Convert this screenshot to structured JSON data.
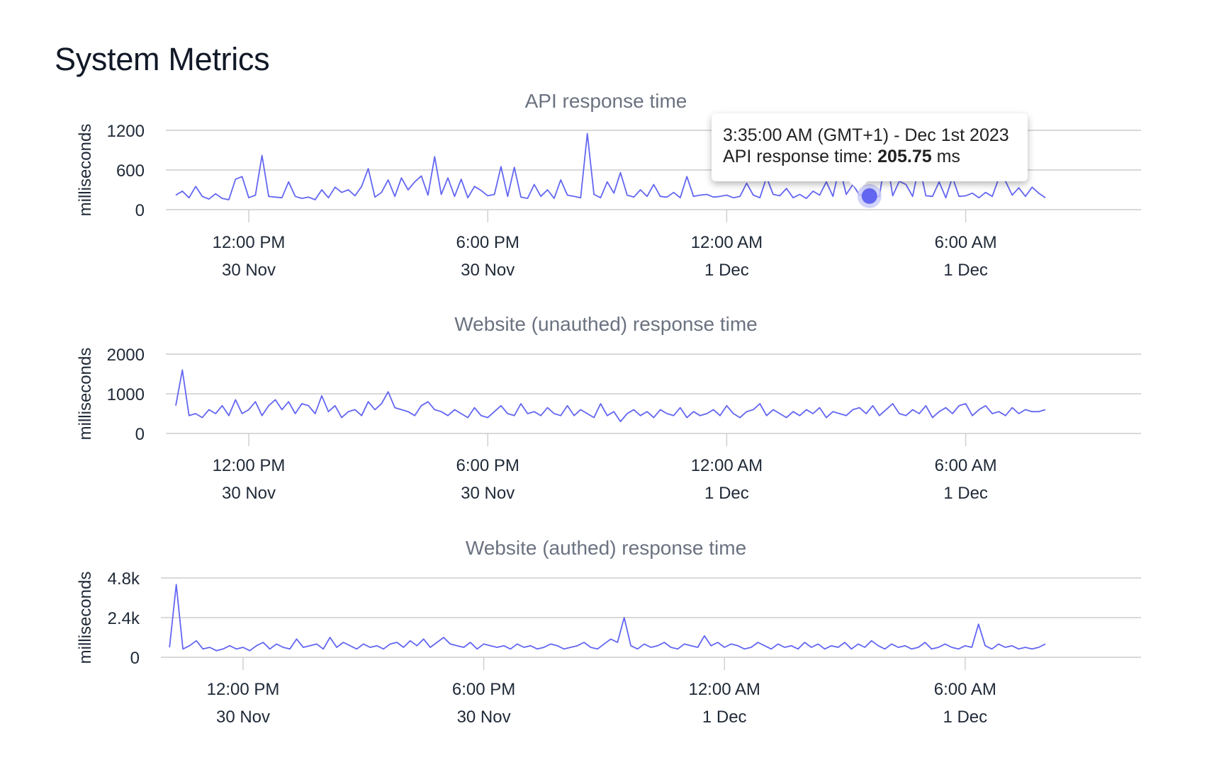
{
  "page": {
    "title": "System Metrics"
  },
  "colors": {
    "line": "#6366f1",
    "marker": "#6366f1",
    "halo": "#c7c9f9"
  },
  "tooltip": {
    "time": "3:35:00 AM (GMT+1) - Dec 1st 2023",
    "label": "API response time: ",
    "value": "205.75",
    "unit": " ms",
    "point_hours_from_noon": 15.583,
    "point_value": 205.75
  },
  "chart_data": [
    {
      "type": "line",
      "title": "API response time",
      "ylabel": "milliseconds",
      "xlabel": "",
      "ylim": [
        0,
        1200
      ],
      "yticks": [
        {
          "v": 0,
          "label": "0"
        },
        {
          "v": 600,
          "label": "600"
        },
        {
          "v": 1200,
          "label": "1200"
        }
      ],
      "xticks": [
        {
          "h": 0,
          "time": "12:00 PM",
          "date": "30 Nov"
        },
        {
          "h": 6,
          "time": "6:00 PM",
          "date": "30 Nov"
        },
        {
          "h": 12,
          "time": "12:00 AM",
          "date": "1 Dec"
        },
        {
          "h": 18,
          "time": "6:00 AM",
          "date": "1 Dec"
        }
      ],
      "grid": true,
      "start_hours_from_noon": -1.8333,
      "interval_minutes": 10,
      "series": [
        {
          "name": "API response time",
          "values": [
            220,
            280,
            180,
            350,
            200,
            160,
            240,
            170,
            150,
            460,
            500,
            180,
            220,
            820,
            200,
            190,
            180,
            420,
            200,
            170,
            190,
            150,
            300,
            180,
            340,
            260,
            300,
            210,
            350,
            620,
            190,
            260,
            450,
            200,
            480,
            300,
            420,
            510,
            220,
            800,
            230,
            480,
            200,
            460,
            180,
            350,
            290,
            210,
            230,
            650,
            200,
            640,
            190,
            170,
            380,
            200,
            300,
            170,
            450,
            220,
            200,
            180,
            1150,
            230,
            180,
            420,
            250,
            560,
            220,
            190,
            300,
            200,
            380,
            200,
            190,
            260,
            180,
            500,
            200,
            220,
            230,
            190,
            200,
            220,
            180,
            200,
            400,
            220,
            180,
            490,
            230,
            210,
            320,
            180,
            230,
            170,
            280,
            220,
            420,
            200,
            650,
            230,
            380,
            220,
            240,
            180,
            200,
            850,
            210,
            430,
            380,
            200,
            680,
            210,
            200,
            420,
            180,
            490,
            200,
            210,
            250,
            180,
            260,
            200,
            480,
            430,
            220,
            330,
            200,
            340,
            250,
            180
          ]
        }
      ]
    },
    {
      "type": "line",
      "title": "Website (unauthed) response time",
      "ylabel": "milliseconds",
      "xlabel": "",
      "ylim": [
        0,
        2000
      ],
      "yticks": [
        {
          "v": 0,
          "label": "0"
        },
        {
          "v": 1000,
          "label": "1000"
        },
        {
          "v": 2000,
          "label": "2000"
        }
      ],
      "xticks": [
        {
          "h": 0,
          "time": "12:00 PM",
          "date": "30 Nov"
        },
        {
          "h": 6,
          "time": "6:00 PM",
          "date": "30 Nov"
        },
        {
          "h": 12,
          "time": "12:00 AM",
          "date": "1 Dec"
        },
        {
          "h": 18,
          "time": "6:00 AM",
          "date": "1 Dec"
        }
      ],
      "grid": true,
      "start_hours_from_noon": -1.8333,
      "interval_minutes": 10,
      "series": [
        {
          "name": "Website (unauthed) response time",
          "values": [
            700,
            1600,
            450,
            500,
            400,
            600,
            500,
            700,
            450,
            850,
            500,
            600,
            800,
            450,
            700,
            850,
            600,
            800,
            500,
            750,
            700,
            500,
            950,
            550,
            700,
            400,
            550,
            600,
            450,
            800,
            600,
            750,
            1050,
            650,
            600,
            550,
            450,
            700,
            800,
            600,
            550,
            450,
            600,
            500,
            400,
            650,
            450,
            400,
            550,
            700,
            500,
            450,
            750,
            500,
            550,
            450,
            650,
            500,
            450,
            700,
            450,
            600,
            500,
            400,
            750,
            450,
            550,
            300,
            500,
            600,
            450,
            550,
            400,
            600,
            500,
            450,
            650,
            400,
            550,
            450,
            500,
            600,
            450,
            700,
            500,
            400,
            550,
            600,
            750,
            450,
            600,
            500,
            400,
            550,
            450,
            600,
            500,
            650,
            400,
            550,
            500,
            450,
            600,
            650,
            500,
            700,
            450,
            600,
            750,
            500,
            450,
            600,
            500,
            700,
            400,
            550,
            650,
            500,
            700,
            750,
            450,
            600,
            700,
            500,
            550,
            450,
            650,
            500,
            600,
            550,
            550,
            600
          ]
        }
      ]
    },
    {
      "type": "line",
      "title": "Website (authed) response time",
      "ylabel": "milliseconds",
      "xlabel": "",
      "ylim": [
        0,
        4800
      ],
      "yticks": [
        {
          "v": 0,
          "label": "0"
        },
        {
          "v": 2400,
          "label": "2.4k"
        },
        {
          "v": 4800,
          "label": "4.8k"
        }
      ],
      "xticks": [
        {
          "h": 0,
          "time": "12:00 PM",
          "date": "30 Nov"
        },
        {
          "h": 6,
          "time": "6:00 PM",
          "date": "30 Nov"
        },
        {
          "h": 12,
          "time": "12:00 AM",
          "date": "1 Dec"
        },
        {
          "h": 18,
          "time": "6:00 AM",
          "date": "1 Dec"
        }
      ],
      "grid": true,
      "start_hours_from_noon": -1.8333,
      "interval_minutes": 10,
      "series": [
        {
          "name": "Website (authed) response time",
          "values": [
            600,
            4400,
            500,
            700,
            1000,
            500,
            600,
            400,
            500,
            700,
            500,
            600,
            400,
            700,
            900,
            500,
            800,
            600,
            500,
            1100,
            600,
            700,
            800,
            500,
            1200,
            600,
            900,
            700,
            500,
            800,
            600,
            700,
            500,
            800,
            900,
            600,
            1000,
            700,
            1100,
            600,
            900,
            1200,
            800,
            700,
            600,
            900,
            500,
            800,
            700,
            600,
            700,
            500,
            800,
            600,
            700,
            500,
            600,
            800,
            700,
            500,
            600,
            700,
            900,
            600,
            500,
            800,
            1100,
            900,
            2400,
            700,
            500,
            800,
            600,
            700,
            900,
            600,
            500,
            800,
            700,
            600,
            1300,
            700,
            900,
            600,
            800,
            700,
            500,
            600,
            900,
            700,
            500,
            800,
            600,
            700,
            500,
            900,
            600,
            800,
            500,
            700,
            600,
            900,
            500,
            800,
            600,
            1000,
            700,
            500,
            800,
            600,
            700,
            500,
            600,
            900,
            500,
            600,
            800,
            600,
            500,
            700,
            600,
            2000,
            700,
            500,
            800,
            600,
            700,
            500,
            600,
            500,
            600,
            800
          ]
        }
      ]
    }
  ]
}
